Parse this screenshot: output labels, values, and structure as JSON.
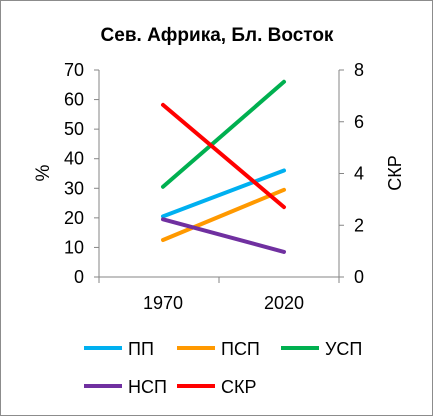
{
  "chart_data": {
    "type": "line",
    "title": "Сев. Африка, Бл. Восток",
    "x": [
      "1970",
      "2020"
    ],
    "ylabel": "%",
    "y2label": "СКР",
    "ylim": [
      0,
      70
    ],
    "y2lim": [
      0,
      8
    ],
    "yticks": [
      "0",
      "10",
      "20",
      "30",
      "40",
      "50",
      "60",
      "70"
    ],
    "y2ticks": [
      "0",
      "2",
      "4",
      "6",
      "8"
    ],
    "grid": false,
    "legend_position": "bottom",
    "series": [
      {
        "name": "ПП",
        "axis": "left",
        "values": [
          20.5,
          36
        ],
        "color": "#00b0f0"
      },
      {
        "name": "ПСП",
        "axis": "left",
        "values": [
          12.5,
          29.5
        ],
        "color": "#ff9900"
      },
      {
        "name": "УСП",
        "axis": "left",
        "values": [
          30.5,
          66
        ],
        "color": "#00b050"
      },
      {
        "name": "НСП",
        "axis": "left",
        "values": [
          19.5,
          8.5
        ],
        "color": "#7030a0"
      },
      {
        "name": "СКР",
        "axis": "right",
        "values": [
          6.65,
          2.7
        ],
        "color": "#ff0000"
      }
    ]
  }
}
